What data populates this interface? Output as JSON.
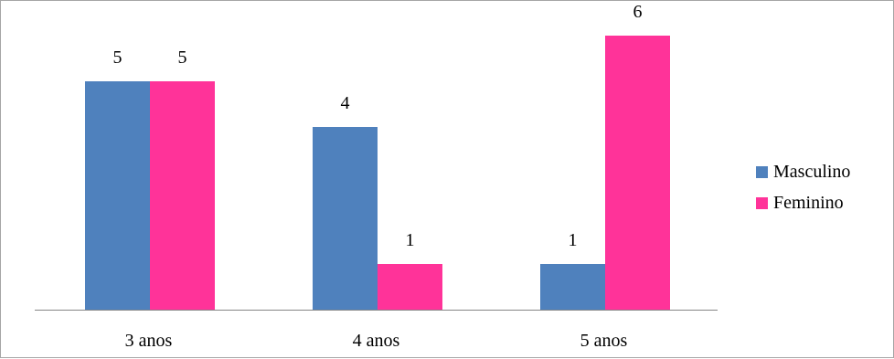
{
  "chart_data": {
    "type": "bar",
    "title": "",
    "xlabel": "",
    "ylabel": "",
    "categories": [
      "3 anos",
      "4 anos",
      "5 anos"
    ],
    "series": [
      {
        "name": "Masculino",
        "color": "#4f81bd",
        "values": [
          5,
          4,
          1
        ]
      },
      {
        "name": "Feminino",
        "color": "#ff3399",
        "values": [
          5,
          1,
          6
        ]
      }
    ],
    "ylim": [
      0,
      6
    ],
    "grid": false,
    "legend_position": "right"
  }
}
